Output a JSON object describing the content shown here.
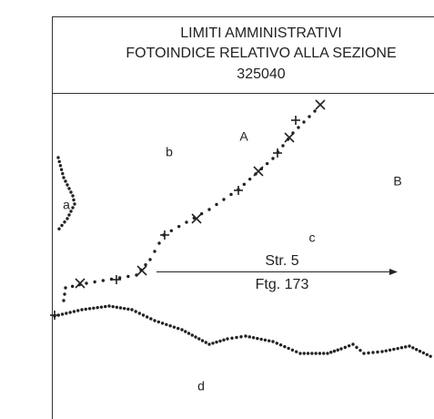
{
  "header": {
    "lines": [
      "LIMITI AMMINISTRATIVI",
      "FOTOINDICE RELATIVO ALLA SEZIONE",
      "325040"
    ]
  },
  "labels": {
    "A": "A",
    "b": "b",
    "B": "B",
    "a": "a",
    "c": "c",
    "d": "d"
  },
  "street": "Str. 5",
  "sheet": "Ftg. 173"
}
